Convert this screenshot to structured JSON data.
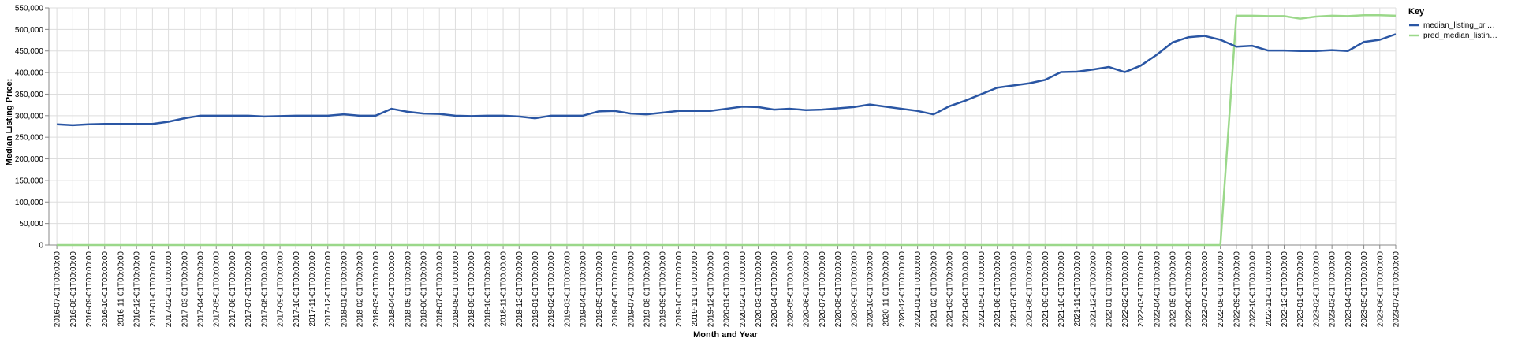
{
  "chart_data": {
    "type": "line",
    "xlabel": "Month and Year",
    "ylabel": "Median Listing Price:",
    "ylim": [
      0,
      550000
    ],
    "yticks": [
      "0",
      "50,000",
      "100,000",
      "150,000",
      "200,000",
      "250,000",
      "300,000",
      "350,000",
      "400,000",
      "450,000",
      "500,000",
      "550,000"
    ],
    "grid": true,
    "legend": {
      "title": "Key",
      "position": "right"
    },
    "categories": [
      "2016-07-01T00:00:00",
      "2016-08-01T00:00:00",
      "2016-09-01T00:00:00",
      "2016-10-01T00:00:00",
      "2016-11-01T00:00:00",
      "2016-12-01T00:00:00",
      "2017-01-01T00:00:00",
      "2017-02-01T00:00:00",
      "2017-03-01T00:00:00",
      "2017-04-01T00:00:00",
      "2017-05-01T00:00:00",
      "2017-06-01T00:00:00",
      "2017-07-01T00:00:00",
      "2017-08-01T00:00:00",
      "2017-09-01T00:00:00",
      "2017-10-01T00:00:00",
      "2017-11-01T00:00:00",
      "2017-12-01T00:00:00",
      "2018-01-01T00:00:00",
      "2018-02-01T00:00:00",
      "2018-03-01T00:00:00",
      "2018-04-01T00:00:00",
      "2018-05-01T00:00:00",
      "2018-06-01T00:00:00",
      "2018-07-01T00:00:00",
      "2018-08-01T00:00:00",
      "2018-09-01T00:00:00",
      "2018-10-01T00:00:00",
      "2018-11-01T00:00:00",
      "2018-12-01T00:00:00",
      "2019-01-01T00:00:00",
      "2019-02-01T00:00:00",
      "2019-03-01T00:00:00",
      "2019-04-01T00:00:00",
      "2019-05-01T00:00:00",
      "2019-06-01T00:00:00",
      "2019-07-01T00:00:00",
      "2019-08-01T00:00:00",
      "2019-09-01T00:00:00",
      "2019-10-01T00:00:00",
      "2019-11-01T00:00:00",
      "2019-12-01T00:00:00",
      "2020-01-01T00:00:00",
      "2020-02-01T00:00:00",
      "2020-03-01T00:00:00",
      "2020-04-01T00:00:00",
      "2020-05-01T00:00:00",
      "2020-06-01T00:00:00",
      "2020-07-01T00:00:00",
      "2020-08-01T00:00:00",
      "2020-09-01T00:00:00",
      "2020-10-01T00:00:00",
      "2020-11-01T00:00:00",
      "2020-12-01T00:00:00",
      "2021-01-01T00:00:00",
      "2021-02-01T00:00:00",
      "2021-03-01T00:00:00",
      "2021-04-01T00:00:00",
      "2021-05-01T00:00:00",
      "2021-06-01T00:00:00",
      "2021-07-01T00:00:00",
      "2021-08-01T00:00:00",
      "2021-09-01T00:00:00",
      "2021-10-01T00:00:00",
      "2021-11-01T00:00:00",
      "2021-12-01T00:00:00",
      "2022-01-01T00:00:00",
      "2022-02-01T00:00:00",
      "2022-03-01T00:00:00",
      "2022-04-01T00:00:00",
      "2022-05-01T00:00:00",
      "2022-06-01T00:00:00",
      "2022-07-01T00:00:00",
      "2022-08-01T00:00:00",
      "2022-09-01T00:00:00",
      "2022-10-01T00:00:00",
      "2022-11-01T00:00:00",
      "2022-12-01T00:00:00",
      "2023-01-01T00:00:00",
      "2023-02-01T00:00:00",
      "2023-03-01T00:00:00",
      "2023-04-01T00:00:00",
      "2023-05-01T00:00:00",
      "2023-06-01T00:00:00",
      "2023-07-01T00:00:00"
    ],
    "series": [
      {
        "name": "median_listing_pri…",
        "color": "#2a56a4",
        "values": [
          280000,
          278000,
          280000,
          281000,
          281000,
          281000,
          281000,
          286000,
          294000,
          300000,
          300000,
          300000,
          300000,
          298000,
          299000,
          300000,
          300000,
          300000,
          303000,
          300000,
          300000,
          316000,
          309000,
          305000,
          304000,
          300000,
          299000,
          300000,
          300000,
          298000,
          294000,
          300000,
          300000,
          300000,
          310000,
          311000,
          305000,
          303000,
          307000,
          311000,
          311000,
          311000,
          316000,
          321000,
          320000,
          314000,
          316000,
          313000,
          314000,
          317000,
          320000,
          326000,
          321000,
          316000,
          311000,
          303000,
          322000,
          335000,
          350000,
          365000,
          370000,
          375000,
          383000,
          401000,
          402000,
          407000,
          413000,
          401000,
          416000,
          441000,
          470000,
          482000,
          485000,
          476000,
          460000,
          462000,
          451000,
          451000,
          450000,
          450000,
          452000,
          450000,
          471000,
          476000,
          489000
        ]
      },
      {
        "name": "pred_median_listin…",
        "color": "#9bd88a",
        "values": [
          0,
          0,
          0,
          0,
          0,
          0,
          0,
          0,
          0,
          0,
          0,
          0,
          0,
          0,
          0,
          0,
          0,
          0,
          0,
          0,
          0,
          0,
          0,
          0,
          0,
          0,
          0,
          0,
          0,
          0,
          0,
          0,
          0,
          0,
          0,
          0,
          0,
          0,
          0,
          0,
          0,
          0,
          0,
          0,
          0,
          0,
          0,
          0,
          0,
          0,
          0,
          0,
          0,
          0,
          0,
          0,
          0,
          0,
          0,
          0,
          0,
          0,
          0,
          0,
          0,
          0,
          0,
          0,
          0,
          0,
          0,
          0,
          0,
          0,
          532000,
          532000,
          531000,
          531000,
          525000,
          530000,
          532000,
          531000,
          533000,
          533000,
          532000
        ]
      }
    ]
  }
}
